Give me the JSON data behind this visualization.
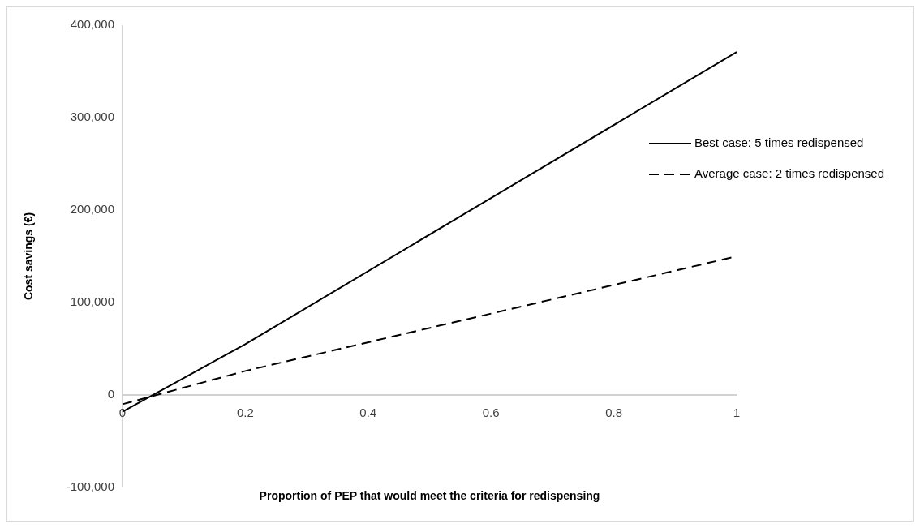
{
  "chart_data": {
    "type": "line",
    "xlabel": "Proportion of PEP that would meet  the criteria for redispensing",
    "ylabel": "Cost savings (€)",
    "x": [
      0,
      0.2,
      1
    ],
    "series": [
      {
        "name": "Best case: 5 times redispensed",
        "color": "#000000",
        "values": [
          -18000,
          55000,
          371000
        ],
        "line_style": "solid"
      },
      {
        "name": "Average case: 2 times redispensed",
        "color": "#000000",
        "values": [
          -10000,
          26000,
          150000
        ],
        "line_style": "dashed"
      }
    ],
    "xlim": [
      0,
      1
    ],
    "xticks": [
      0,
      0.2,
      0.4,
      0.6,
      0.8,
      1
    ],
    "ylim": [
      -100000,
      400000
    ],
    "yticks": [
      {
        "value": -100000,
        "label": "-100,000"
      },
      {
        "value": 0,
        "label": "0"
      },
      {
        "value": 100000,
        "label": "100,000"
      },
      {
        "value": 200000,
        "label": "200,000"
      },
      {
        "value": 300000,
        "label": "300,000"
      },
      {
        "value": 400000,
        "label": "400,000"
      }
    ],
    "grid": false,
    "legend": "right",
    "marker": "none"
  }
}
